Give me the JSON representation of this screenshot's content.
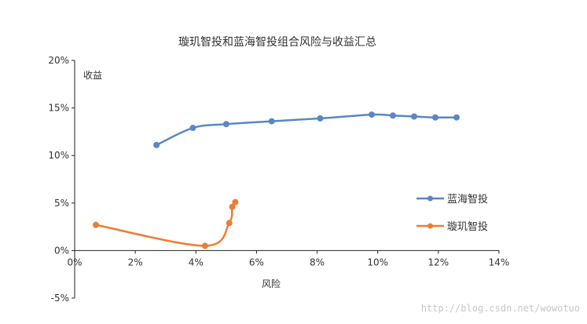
{
  "watermark": "http://blog.csdn.net/wowotuo",
  "chart_data": {
    "type": "scatter",
    "title": "璇玑智投和蓝海智投组合风险与收益汇总",
    "xlabel": "风险",
    "ylabel": "收益",
    "xlim": [
      0,
      14
    ],
    "ylim": [
      -5,
      20
    ],
    "x_ticks": [
      "0%",
      "2%",
      "4%",
      "6%",
      "8%",
      "10%",
      "12%",
      "14%"
    ],
    "y_ticks": [
      "20%",
      "15%",
      "10%",
      "5%",
      "0%",
      "-5%"
    ],
    "legend_position": "right",
    "grid": false,
    "series": [
      {
        "name": "蓝海智投",
        "color": "#5B86C5",
        "points": [
          [
            2.7,
            11.1
          ],
          [
            3.9,
            12.9
          ],
          [
            5.0,
            13.3
          ],
          [
            6.5,
            13.6
          ],
          [
            8.1,
            13.9
          ],
          [
            9.8,
            14.3
          ],
          [
            10.5,
            14.2
          ],
          [
            11.2,
            14.1
          ],
          [
            11.9,
            14.0
          ],
          [
            12.6,
            14.0
          ]
        ]
      },
      {
        "name": "璇玑智投",
        "color": "#ED7D31",
        "points": [
          [
            0.7,
            2.7
          ],
          [
            4.3,
            0.5
          ],
          [
            5.1,
            2.9
          ],
          [
            5.2,
            4.6
          ],
          [
            5.3,
            5.1
          ]
        ]
      }
    ]
  }
}
